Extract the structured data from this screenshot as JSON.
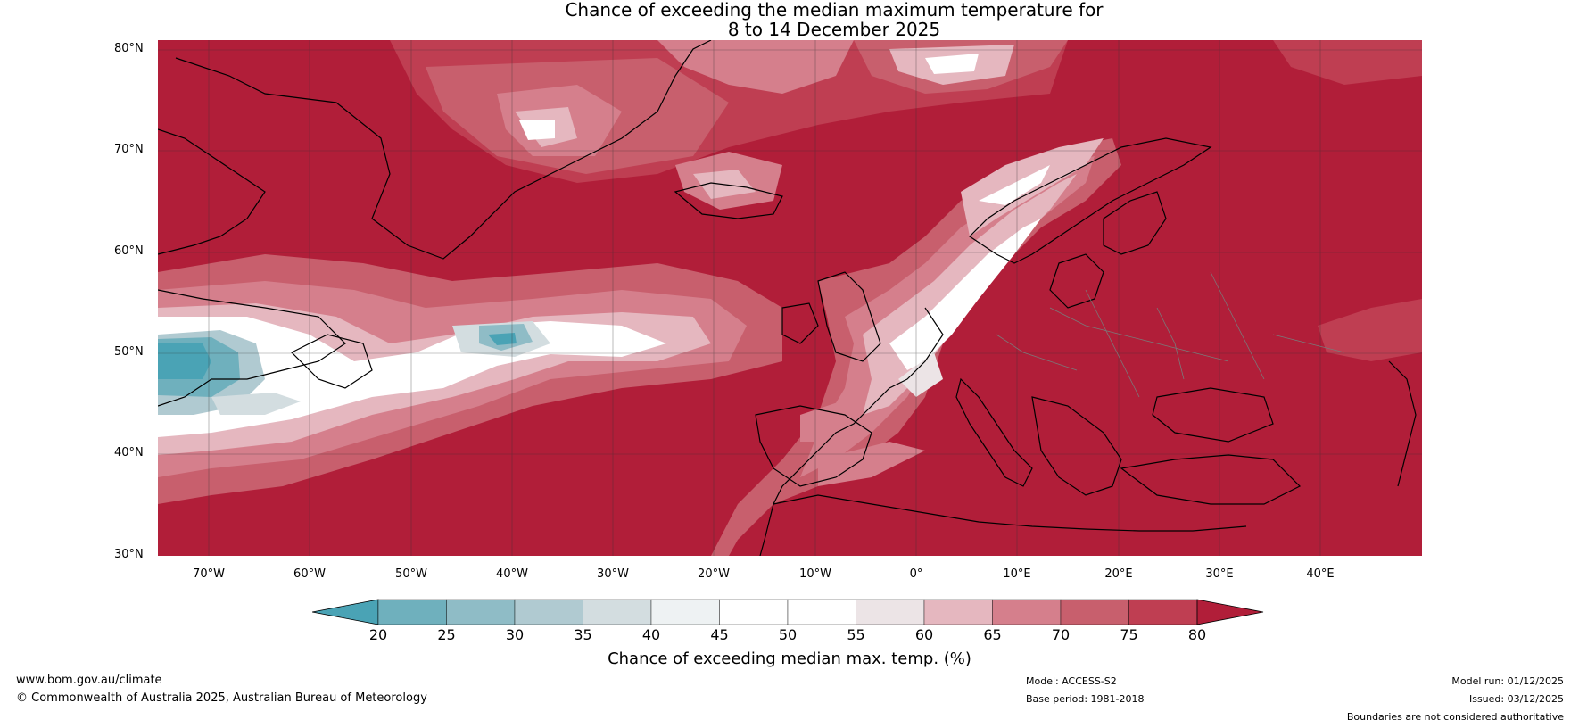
{
  "title": {
    "line1": "Chance of exceeding the median maximum temperature for",
    "line2": "8 to 14 December 2025"
  },
  "map": {
    "lat_labels": [
      "80°N",
      "70°N",
      "60°N",
      "50°N",
      "40°N",
      "30°N"
    ],
    "lon_labels": [
      "70°W",
      "60°W",
      "50°W",
      "40°W",
      "30°W",
      "20°W",
      "10°W",
      "0°",
      "10°E",
      "20°E",
      "30°E",
      "40°E"
    ],
    "extent": {
      "lon_min": -75,
      "lon_max": 50,
      "lat_min": 30,
      "lat_max": 81
    }
  },
  "colorbar": {
    "ticks": [
      "20",
      "25",
      "30",
      "35",
      "40",
      "45",
      "50",
      "55",
      "60",
      "65",
      "70",
      "75",
      "80"
    ],
    "colors": [
      "#4aa3b5",
      "#6fb0bd",
      "#8fbcc6",
      "#b0cad1",
      "#d3dde0",
      "#eef2f3",
      "#ffffff",
      "#ffffff",
      "#ece4e6",
      "#e5b7bf",
      "#d57f8c",
      "#c85f6d",
      "#bf3e52",
      "#b11e39"
    ],
    "label": "Chance of exceeding median max. temp. (%)"
  },
  "footer": {
    "url": "www.bom.gov.au/climate",
    "copyright": "© Commonwealth of Australia 2025, Australian Bureau of Meteorology",
    "model": "Model: ACCESS-S2",
    "base_period": "Base period: 1981-2018",
    "model_run": "Model run: 01/12/2025",
    "issued": "Issued: 03/12/2025",
    "disclaimer": "Boundaries are not considered authoritative"
  }
}
